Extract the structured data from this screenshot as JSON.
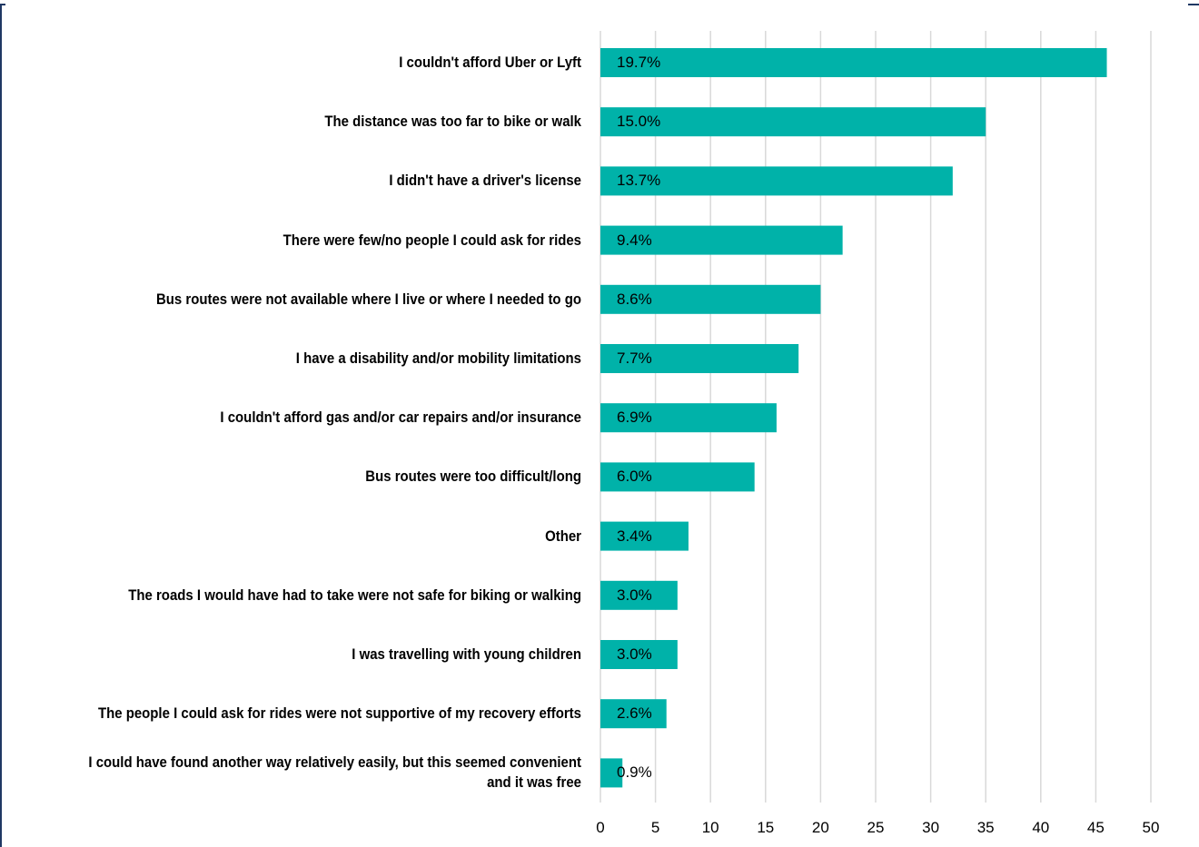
{
  "chart_data": {
    "type": "bar",
    "orientation": "horizontal",
    "categories": [
      "I couldn't afford Uber or Lyft",
      "The distance was too far to bike or walk",
      "I didn't have a driver's license",
      "There were few/no people I could ask for rides",
      "Bus routes were not available where I live or where I needed to go",
      "I have a disability and/or mobility limitations",
      "I couldn't afford gas and/or car repairs and/or insurance",
      "Bus routes were too difficult/long",
      "Other",
      "The roads I would have had to take were not safe for biking or walking",
      "I was travelling with young children",
      "The people I could ask for rides were not supportive of my recovery efforts",
      "I could have found another way relatively easily, but this seemed convenient and it was free"
    ],
    "values": [
      46,
      35,
      32,
      22,
      20,
      18,
      16,
      14,
      8,
      7,
      7,
      6,
      2
    ],
    "data_labels": [
      "19.7%",
      "15.0%",
      "13.7%",
      "9.4%",
      "8.6%",
      "7.7%",
      "6.9%",
      "6.0%",
      "3.4%",
      "3.0%",
      "3.0%",
      "2.6%",
      "0.9%"
    ],
    "xlim": [
      0,
      50
    ],
    "xticks": [
      "0",
      "5",
      "10",
      "15",
      "20",
      "25",
      "30",
      "35",
      "40",
      "45",
      "50"
    ],
    "grid": "vertical",
    "bar_color": "#00b2a9",
    "grid_color": "#d9d9d9"
  }
}
